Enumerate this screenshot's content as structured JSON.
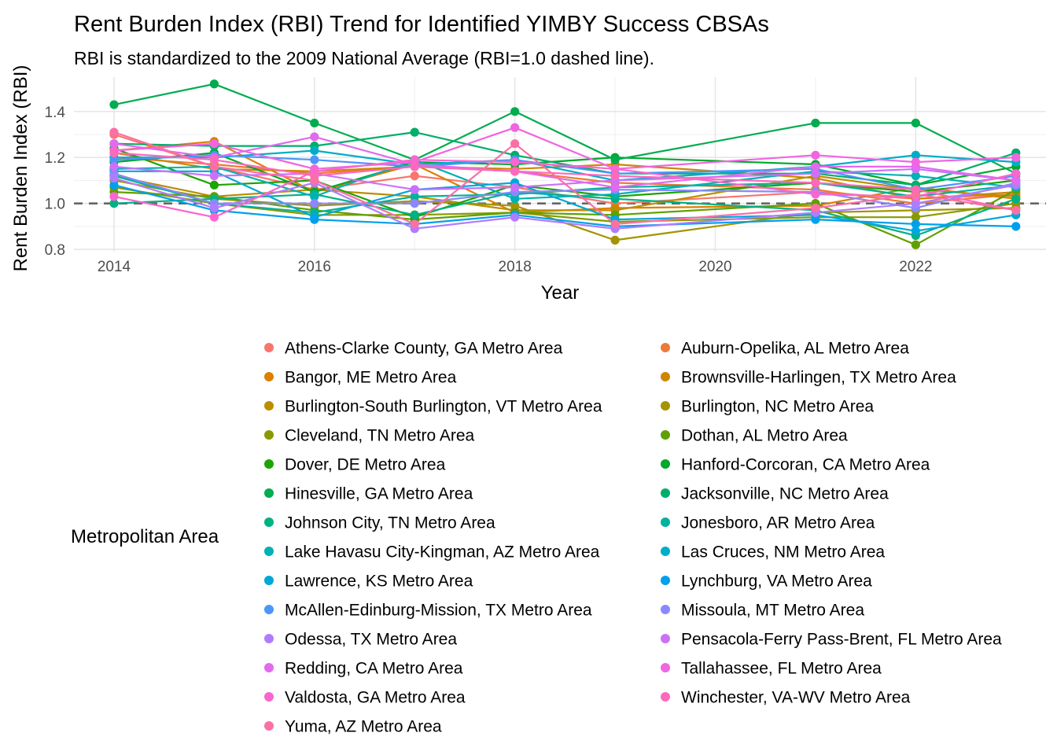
{
  "chart_data": {
    "type": "line",
    "title": "Rent Burden Index (RBI) Trend for Identified YIMBY Success CBSAs",
    "subtitle": "RBI is standardized to the 2009 National Average (RBI=1.0 dashed line).",
    "xlabel": "Year",
    "ylabel": "Rent Burden Index (RBI)",
    "legend_title": "Metropolitan Area",
    "legend_position": "bottom",
    "xlim": [
      2013.6,
      2023.3
    ],
    "ylim": [
      0.79,
      1.55
    ],
    "x_ticks": [
      2014,
      2016,
      2018,
      2020,
      2022
    ],
    "y_ticks": [
      0.8,
      1.0,
      1.2,
      1.4
    ],
    "x_tick_labels": [
      "2014",
      "2016",
      "2018",
      "2020",
      "2022"
    ],
    "y_tick_labels": [
      "0.8",
      "1.0",
      "1.2",
      "1.4"
    ],
    "reference_line": {
      "y": 1.0,
      "style": "dashed"
    },
    "x": [
      2014,
      2015,
      2016,
      2017,
      2018,
      2019,
      2021,
      2022,
      2023
    ],
    "series": [
      {
        "name": "Athens-Clarke County, GA Metro Area",
        "color": "#F8766D",
        "values": [
          1.3,
          1.16,
          1.06,
          1.12,
          1.07,
          1.0,
          1.05,
          1.02,
          1.04
        ]
      },
      {
        "name": "Auburn-Opelika, AL Metro Area",
        "color": "#EC7A38",
        "values": [
          1.2,
          1.17,
          1.13,
          1.16,
          1.14,
          1.09,
          1.06,
          1.0,
          1.04
        ]
      },
      {
        "name": "Bangor, ME Metro Area",
        "color": "#DE7F00",
        "values": [
          1.23,
          1.27,
          1.05,
          1.17,
          0.96,
          0.98,
          0.99,
          1.07,
          1.02
        ]
      },
      {
        "name": "Brownsville-Harlingen, TX Metro Area",
        "color": "#CE8600",
        "values": [
          1.22,
          1.15,
          1.14,
          1.16,
          1.15,
          1.17,
          1.11,
          1.02,
          1.05
        ]
      },
      {
        "name": "Burlington-South Burlington, VT Metro Area",
        "color": "#BB8E00",
        "values": [
          1.12,
          1.03,
          1.06,
          1.03,
          0.97,
          0.97,
          1.12,
          1.06,
          1.03
        ]
      },
      {
        "name": "Burlington, NC Metro Area",
        "color": "#A39400",
        "values": [
          1.1,
          1.02,
          0.99,
          1.01,
          0.99,
          0.84,
          0.96,
          0.97,
          0.98
        ]
      },
      {
        "name": "Cleveland, TN Metro Area",
        "color": "#879A00",
        "values": [
          1.07,
          1.0,
          0.95,
          0.95,
          0.96,
          0.92,
          0.94,
          0.94,
          1.0
        ]
      },
      {
        "name": "Dothan, AL Metro Area",
        "color": "#5FA000",
        "values": [
          1.05,
          1.03,
          0.97,
          0.93,
          0.96,
          0.95,
          1.0,
          0.82,
          1.06
        ]
      },
      {
        "name": "Dover, DE Metro Area",
        "color": "#1CA400",
        "values": [
          1.24,
          1.08,
          1.1,
          0.94,
          1.08,
          1.03,
          1.09,
          1.05,
          1.1
        ]
      },
      {
        "name": "Hanford-Corcoran, CA Metro Area",
        "color": "#00A82A",
        "values": [
          1.18,
          1.22,
          1.05,
          1.18,
          1.17,
          1.2,
          1.17,
          1.08,
          1.16
        ]
      },
      {
        "name": "Hinesville, GA Metro Area",
        "color": "#00AC4F",
        "values": [
          1.43,
          1.52,
          1.35,
          1.19,
          1.4,
          1.19,
          1.35,
          1.35,
          1.13
        ]
      },
      {
        "name": "Jacksonville, NC Metro Area",
        "color": "#00AE6B",
        "values": [
          1.26,
          1.25,
          1.25,
          1.31,
          1.21,
          1.13,
          1.13,
          1.08,
          1.22
        ]
      },
      {
        "name": "Johnson City, TN Metro Area",
        "color": "#00B184",
        "values": [
          1.0,
          1.02,
          1.04,
          0.95,
          1.05,
          1.02,
          0.97,
          0.86,
          1.02
        ]
      },
      {
        "name": "Jonesboro, AR Metro Area",
        "color": "#00B29C",
        "values": [
          1.12,
          1.0,
          0.96,
          1.03,
          1.04,
          1.07,
          1.09,
          1.03,
          1.08
        ]
      },
      {
        "name": "Lake Havasu City-Kingman, AZ Metro Area",
        "color": "#00B2B3",
        "values": [
          1.15,
          1.16,
          1.03,
          1.19,
          1.02,
          1.04,
          1.14,
          1.12,
          1.07
        ]
      },
      {
        "name": "Las Cruces, NM Metro Area",
        "color": "#00ADC7",
        "values": [
          1.2,
          1.2,
          1.23,
          1.17,
          1.19,
          1.1,
          1.16,
          1.21,
          1.18
        ]
      },
      {
        "name": "Lawrence, KS Metro Area",
        "color": "#00A7DA",
        "values": [
          1.14,
          1.14,
          0.94,
          1.06,
          1.09,
          0.93,
          0.95,
          0.88,
          0.95
        ]
      },
      {
        "name": "Lynchburg, VA Metro Area",
        "color": "#00A0EB",
        "values": [
          1.08,
          0.97,
          0.93,
          0.91,
          0.95,
          0.9,
          0.93,
          0.91,
          0.9
        ]
      },
      {
        "name": "McAllen-Edinburg-Mission, TX Metro Area",
        "color": "#4B96F8",
        "values": [
          1.19,
          1.21,
          1.19,
          1.16,
          1.19,
          1.13,
          1.15,
          1.06,
          1.12
        ]
      },
      {
        "name": "Missoula, MT Metro Area",
        "color": "#8B88FF",
        "values": [
          1.13,
          1.0,
          1.0,
          1.0,
          1.05,
          1.06,
          1.05,
          0.98,
          1.09
        ]
      },
      {
        "name": "Odessa, TX Metro Area",
        "color": "#B07CFF",
        "values": [
          1.11,
          0.98,
          1.09,
          0.89,
          0.94,
          0.89,
          0.96,
          1.0,
          1.08
        ]
      },
      {
        "name": "Pensacola-Ferry Pass-Brent, FL Metro Area",
        "color": "#CB71F9",
        "values": [
          1.16,
          1.12,
          1.13,
          1.06,
          1.07,
          1.1,
          1.13,
          1.15,
          1.1
        ]
      },
      {
        "name": "Redding, CA Metro Area",
        "color": "#E16AEE",
        "values": [
          1.26,
          1.2,
          1.29,
          1.17,
          1.14,
          1.07,
          1.16,
          1.16,
          1.1
        ]
      },
      {
        "name": "Tallahassee, FL Metro Area",
        "color": "#F066E0",
        "values": [
          1.23,
          1.26,
          1.15,
          1.18,
          1.33,
          1.15,
          1.21,
          1.18,
          1.2
        ]
      },
      {
        "name": "Valdosta, GA Metro Area",
        "color": "#F966CF",
        "values": [
          1.03,
          0.94,
          1.14,
          1.19,
          1.18,
          1.15,
          1.04,
          1.03,
          1.13
        ]
      },
      {
        "name": "Winchester, VA-WV Metro Area",
        "color": "#FD69BB",
        "values": [
          1.22,
          1.19,
          1.12,
          1.16,
          1.14,
          1.12,
          1.09,
          1.06,
          0.97
        ]
      },
      {
        "name": "Yuma, AZ Metro Area",
        "color": "#FC6FA5",
        "values": [
          1.31,
          1.16,
          1.1,
          0.91,
          1.26,
          0.91,
          0.98,
          1.04,
          0.97
        ]
      }
    ]
  }
}
